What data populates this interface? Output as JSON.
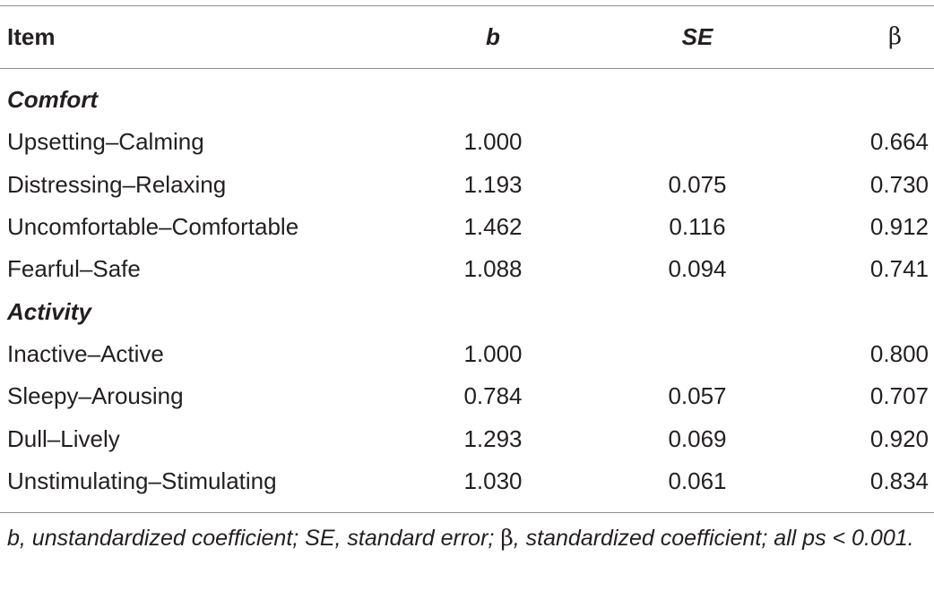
{
  "header": {
    "item": "Item",
    "b": "b",
    "se": "SE",
    "beta": "β"
  },
  "groups": [
    {
      "label": "Comfort",
      "rows": [
        {
          "item": "Upsetting–Calming",
          "b": "1.000",
          "se": "",
          "beta": "0.664"
        },
        {
          "item": "Distressing–Relaxing",
          "b": "1.193",
          "se": "0.075",
          "beta": "0.730"
        },
        {
          "item": "Uncomfortable–Comfortable",
          "b": "1.462",
          "se": "0.116",
          "beta": "0.912"
        },
        {
          "item": "Fearful–Safe",
          "b": "1.088",
          "se": "0.094",
          "beta": "0.741"
        }
      ]
    },
    {
      "label": "Activity",
      "rows": [
        {
          "item": "Inactive–Active",
          "b": "1.000",
          "se": "",
          "beta": "0.800"
        },
        {
          "item": "Sleepy–Arousing",
          "b": "0.784",
          "se": "0.057",
          "beta": "0.707"
        },
        {
          "item": "Dull–Lively",
          "b": "1.293",
          "se": "0.069",
          "beta": "0.920"
        },
        {
          "item": "Unstimulating–Stimulating",
          "b": "1.030",
          "se": "0.061",
          "beta": "0.834"
        }
      ]
    }
  ],
  "footnote": {
    "part1": "b, unstandardized coefficient; SE, standard error; ",
    "beta": "β",
    "part2": ", standardized coefficient; all ps < 0.001."
  }
}
